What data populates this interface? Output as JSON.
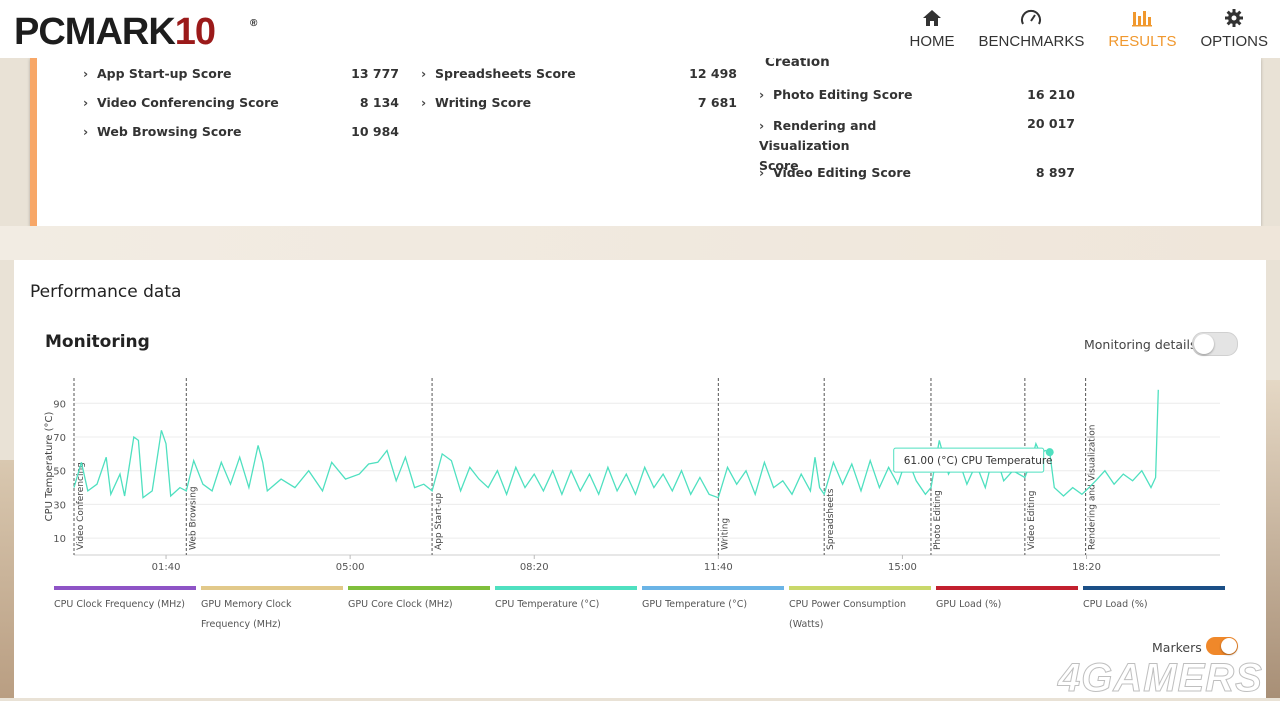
{
  "app": {
    "logo_main": "PCMARK",
    "logo_num": "10",
    "logo_reg": "®"
  },
  "nav": [
    {
      "label": "HOME",
      "icon": "home-icon",
      "active": false
    },
    {
      "label": "BENCHMARKS",
      "icon": "gauge-icon",
      "active": false
    },
    {
      "label": "RESULTS",
      "icon": "bar-chart-icon",
      "active": true
    },
    {
      "label": "OPTIONS",
      "icon": "gear-icon",
      "active": false
    }
  ],
  "scores": {
    "col1": [
      {
        "label": "App Start-up Score",
        "value": "13 777"
      },
      {
        "label": "Video Conferencing Score",
        "value": "8 134"
      },
      {
        "label": "Web Browsing Score",
        "value": "10 984"
      }
    ],
    "col2": [
      {
        "label": "Spreadsheets Score",
        "value": "12 498"
      },
      {
        "label": "Writing Score",
        "value": "7 681"
      }
    ],
    "col3_heading": "Creation",
    "col3": [
      {
        "label": "Photo Editing Score",
        "value": "16 210"
      },
      {
        "label": "Rendering and Visualization",
        "label_cont": "Score",
        "value": "20 017"
      },
      {
        "label": "Video Editing Score",
        "value": "8 897"
      }
    ]
  },
  "performance": {
    "title": "Performance data",
    "monitoring_title": "Monitoring",
    "monitoring_details_label": "Monitoring details",
    "monitoring_details_on": false,
    "markers_label": "Markers",
    "markers_on": true
  },
  "tooltip": {
    "text": "61.00 (°C) CPU Temperature"
  },
  "legend": [
    {
      "label": "CPU Clock Frequency (MHz)",
      "color": "#8e54c6"
    },
    {
      "label": "GPU Memory Clock Frequency (MHz)",
      "color": "#e2c98a"
    },
    {
      "label": "GPU Core Clock (MHz)",
      "color": "#7fbf3c"
    },
    {
      "label": "CPU Temperature (°C)",
      "color": "#4fe0c0"
    },
    {
      "label": "GPU Temperature (°C)",
      "color": "#6bb4e6"
    },
    {
      "label": "CPU Power Consumption (Watts)",
      "color": "#c9d86a"
    },
    {
      "label": "GPU Load (%)",
      "color": "#c2202e"
    },
    {
      "label": "CPU Load (%)",
      "color": "#1b4f86"
    }
  ],
  "watermark": "4GAMERS",
  "chart_data": {
    "type": "line",
    "ylabel": "CPU Temperature (°C)",
    "xlabel": "",
    "y_ticks": [
      10,
      30,
      50,
      70,
      90
    ],
    "ylim": [
      0,
      105
    ],
    "x_tick_labels": [
      "01:40",
      "05:00",
      "08:20",
      "11:40",
      "15:00",
      "18:20"
    ],
    "x_tick_seconds": [
      100,
      300,
      500,
      700,
      900,
      1100
    ],
    "xlim_seconds": [
      0,
      1245
    ],
    "line_color": "#4fe0c0",
    "grid": true,
    "markers": [
      {
        "label": "Video Conferencing",
        "t": 0
      },
      {
        "label": "Web Browsing",
        "t": 122
      },
      {
        "label": "App Start-up",
        "t": 389
      },
      {
        "label": "Writing",
        "t": 700
      },
      {
        "label": "Spreadsheets",
        "t": 815
      },
      {
        "label": "Photo Editing",
        "t": 931
      },
      {
        "label": "Video Editing",
        "t": 1033
      },
      {
        "label": "Rendering and Visualization",
        "t": 1099
      }
    ],
    "series": [
      {
        "name": "CPU Temperature (°C)",
        "points": [
          [
            0,
            40
          ],
          [
            8,
            55
          ],
          [
            15,
            38
          ],
          [
            25,
            42
          ],
          [
            35,
            58
          ],
          [
            40,
            36
          ],
          [
            50,
            48
          ],
          [
            55,
            35
          ],
          [
            65,
            70
          ],
          [
            70,
            68
          ],
          [
            75,
            34
          ],
          [
            85,
            38
          ],
          [
            95,
            74
          ],
          [
            100,
            66
          ],
          [
            105,
            35
          ],
          [
            115,
            40
          ],
          [
            122,
            38
          ],
          [
            130,
            56
          ],
          [
            140,
            42
          ],
          [
            150,
            38
          ],
          [
            160,
            55
          ],
          [
            170,
            42
          ],
          [
            180,
            58
          ],
          [
            190,
            40
          ],
          [
            200,
            65
          ],
          [
            205,
            55
          ],
          [
            210,
            38
          ],
          [
            225,
            45
          ],
          [
            240,
            40
          ],
          [
            255,
            50
          ],
          [
            270,
            38
          ],
          [
            280,
            55
          ],
          [
            295,
            45
          ],
          [
            310,
            48
          ],
          [
            320,
            54
          ],
          [
            330,
            55
          ],
          [
            340,
            62
          ],
          [
            350,
            44
          ],
          [
            360,
            58
          ],
          [
            370,
            40
          ],
          [
            380,
            42
          ],
          [
            389,
            38
          ],
          [
            400,
            60
          ],
          [
            410,
            56
          ],
          [
            420,
            38
          ],
          [
            430,
            52
          ],
          [
            440,
            45
          ],
          [
            450,
            40
          ],
          [
            460,
            50
          ],
          [
            470,
            36
          ],
          [
            480,
            52
          ],
          [
            490,
            40
          ],
          [
            500,
            48
          ],
          [
            510,
            38
          ],
          [
            520,
            50
          ],
          [
            530,
            36
          ],
          [
            540,
            50
          ],
          [
            550,
            38
          ],
          [
            560,
            48
          ],
          [
            570,
            36
          ],
          [
            580,
            52
          ],
          [
            590,
            38
          ],
          [
            600,
            48
          ],
          [
            610,
            36
          ],
          [
            620,
            52
          ],
          [
            630,
            40
          ],
          [
            640,
            48
          ],
          [
            650,
            38
          ],
          [
            660,
            50
          ],
          [
            670,
            36
          ],
          [
            680,
            46
          ],
          [
            690,
            36
          ],
          [
            700,
            34
          ],
          [
            710,
            52
          ],
          [
            720,
            42
          ],
          [
            730,
            50
          ],
          [
            740,
            36
          ],
          [
            750,
            55
          ],
          [
            760,
            40
          ],
          [
            770,
            44
          ],
          [
            780,
            36
          ],
          [
            790,
            48
          ],
          [
            800,
            38
          ],
          [
            805,
            58
          ],
          [
            810,
            40
          ],
          [
            815,
            36
          ],
          [
            825,
            55
          ],
          [
            835,
            42
          ],
          [
            845,
            54
          ],
          [
            855,
            38
          ],
          [
            865,
            56
          ],
          [
            875,
            40
          ],
          [
            885,
            52
          ],
          [
            895,
            42
          ],
          [
            905,
            58
          ],
          [
            915,
            44
          ],
          [
            925,
            36
          ],
          [
            931,
            40
          ],
          [
            940,
            68
          ],
          [
            950,
            48
          ],
          [
            960,
            58
          ],
          [
            970,
            42
          ],
          [
            980,
            54
          ],
          [
            990,
            40
          ],
          [
            1000,
            62
          ],
          [
            1010,
            44
          ],
          [
            1020,
            50
          ],
          [
            1033,
            46
          ],
          [
            1040,
            56
          ],
          [
            1045,
            66
          ],
          [
            1050,
            60
          ],
          [
            1055,
            62
          ],
          [
            1060,
            61
          ],
          [
            1065,
            40
          ],
          [
            1075,
            35
          ],
          [
            1085,
            40
          ],
          [
            1095,
            36
          ],
          [
            1099,
            38
          ],
          [
            1110,
            44
          ],
          [
            1120,
            50
          ],
          [
            1130,
            42
          ],
          [
            1140,
            48
          ],
          [
            1150,
            44
          ],
          [
            1160,
            50
          ],
          [
            1170,
            40
          ],
          [
            1175,
            46
          ],
          [
            1178,
            98
          ]
        ]
      }
    ]
  }
}
